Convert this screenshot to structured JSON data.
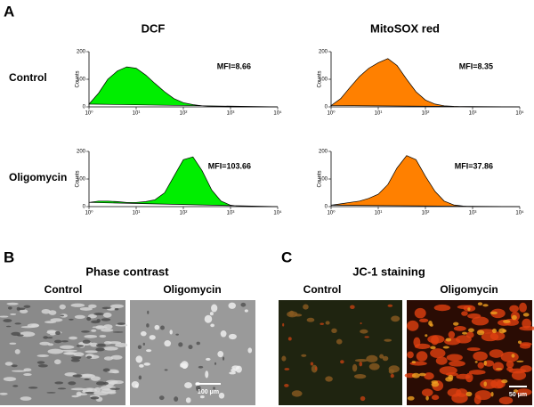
{
  "panel_a": {
    "label": "A",
    "columns": [
      "DCF",
      "MitoSOX red"
    ],
    "rows": [
      "Control",
      "Oligomycin"
    ]
  },
  "chart_data": [
    {
      "type": "area",
      "ylabel": "Counts",
      "annotation": "MFI=8.66",
      "color": "#00ee00",
      "xscale": "log",
      "x": [
        1,
        1.6,
        2.5,
        4,
        6.3,
        10,
        16,
        25,
        40,
        63,
        100,
        160,
        250,
        400,
        630,
        1000,
        1600,
        2500,
        4000,
        6300,
        10000
      ],
      "values": [
        10,
        50,
        100,
        130,
        145,
        140,
        115,
        85,
        55,
        30,
        15,
        8,
        4,
        2,
        1,
        0,
        0,
        0,
        0,
        0,
        0
      ],
      "xlim": [
        1,
        10000
      ],
      "xticks": [
        {
          "value": 1,
          "label": "10⁰"
        },
        {
          "value": 10,
          "label": "10¹"
        },
        {
          "value": 100,
          "label": "10²"
        },
        {
          "value": 1000,
          "label": "10³"
        },
        {
          "value": 10000,
          "label": "10⁴"
        }
      ],
      "ylim": [
        0,
        200
      ],
      "yticks": [
        0,
        100,
        200
      ]
    },
    {
      "type": "area",
      "ylabel": "Counts",
      "annotation": "MFI=8.35",
      "color": "#ff8000",
      "xscale": "log",
      "x": [
        1,
        1.6,
        2.5,
        4,
        6.3,
        10,
        16,
        25,
        40,
        63,
        100,
        160,
        250,
        400,
        630,
        1000,
        1600,
        2500,
        4000,
        6300,
        10000
      ],
      "values": [
        5,
        30,
        70,
        110,
        140,
        160,
        175,
        150,
        100,
        55,
        25,
        10,
        4,
        2,
        1,
        0,
        0,
        0,
        0,
        0,
        0
      ],
      "xlim": [
        1,
        10000
      ],
      "xticks": [
        {
          "value": 1,
          "label": "10⁰"
        },
        {
          "value": 10,
          "label": "10¹"
        },
        {
          "value": 100,
          "label": "10²"
        },
        {
          "value": 1000,
          "label": "10³"
        },
        {
          "value": 10000,
          "label": "10⁴"
        }
      ],
      "ylim": [
        0,
        200
      ],
      "yticks": [
        0,
        100,
        200
      ]
    },
    {
      "type": "area",
      "ylabel": "Counts",
      "annotation": "MFI=103.66",
      "color": "#00ee00",
      "xscale": "log",
      "x": [
        1,
        1.6,
        2.5,
        4,
        6.3,
        10,
        16,
        25,
        40,
        63,
        100,
        160,
        250,
        400,
        630,
        1000,
        1600,
        2500,
        4000,
        6300,
        10000
      ],
      "values": [
        15,
        20,
        20,
        18,
        15,
        15,
        18,
        25,
        50,
        110,
        170,
        180,
        130,
        60,
        20,
        5,
        1,
        0,
        0,
        0,
        0
      ],
      "xlim": [
        1,
        10000
      ],
      "xticks": [
        {
          "value": 1,
          "label": "10⁰"
        },
        {
          "value": 10,
          "label": "10¹"
        },
        {
          "value": 100,
          "label": "10²"
        },
        {
          "value": 1000,
          "label": "10³"
        },
        {
          "value": 10000,
          "label": "10⁴"
        }
      ],
      "ylim": [
        0,
        200
      ],
      "yticks": [
        0,
        100,
        200
      ]
    },
    {
      "type": "area",
      "ylabel": "Counts",
      "annotation": "MFI=37.86",
      "color": "#ff8000",
      "xscale": "log",
      "x": [
        1,
        1.6,
        2.5,
        4,
        6.3,
        10,
        16,
        25,
        40,
        63,
        100,
        160,
        250,
        400,
        630,
        1000,
        1600,
        2500,
        4000,
        6300,
        10000
      ],
      "values": [
        5,
        10,
        15,
        20,
        30,
        45,
        80,
        140,
        185,
        170,
        110,
        55,
        20,
        6,
        2,
        0,
        0,
        0,
        0,
        0,
        0
      ],
      "xlim": [
        1,
        10000
      ],
      "xticks": [
        {
          "value": 1,
          "label": "10⁰"
        },
        {
          "value": 10,
          "label": "10¹"
        },
        {
          "value": 100,
          "label": "10²"
        },
        {
          "value": 1000,
          "label": "10³"
        },
        {
          "value": 10000,
          "label": "10⁴"
        }
      ],
      "ylim": [
        0,
        200
      ],
      "yticks": [
        0,
        100,
        200
      ]
    }
  ],
  "panel_b": {
    "label": "B",
    "title": "Phase contrast",
    "captions": [
      "Control",
      "Oligomycin"
    ],
    "scale_bar": "100 μm"
  },
  "panel_c": {
    "label": "C",
    "title": "JC-1 staining",
    "captions": [
      "Control",
      "Oligomycin"
    ],
    "scale_bar": "50 μm"
  }
}
